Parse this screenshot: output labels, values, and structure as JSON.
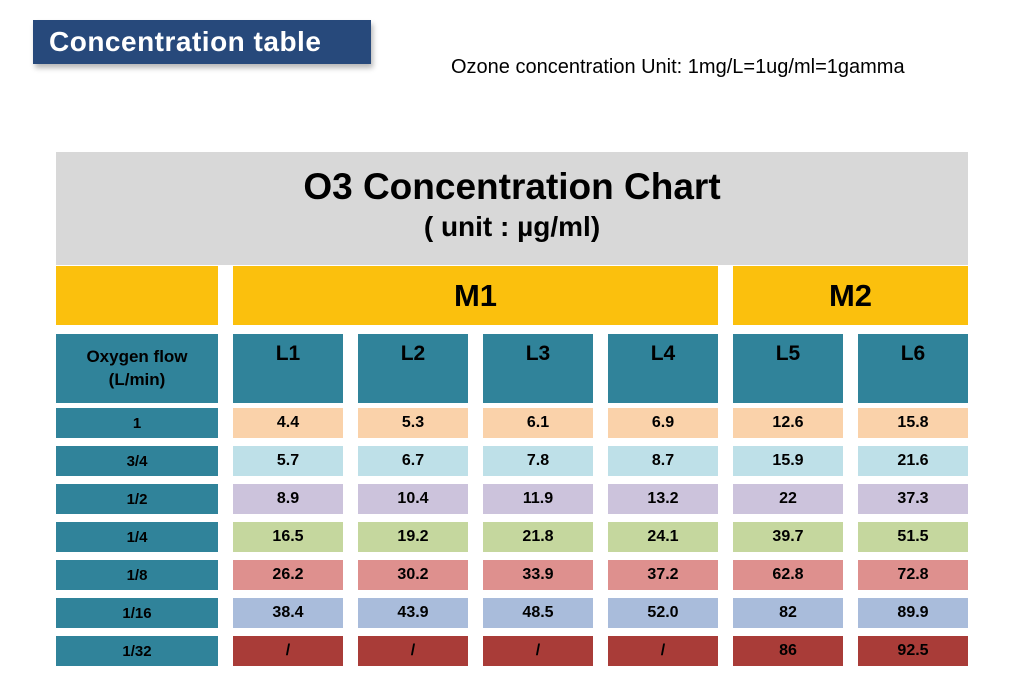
{
  "header": {
    "banner_title": "Concentration table",
    "unit_note": "Ozone concentration Unit: 1mg/L=1ug/ml=1gamma"
  },
  "table": {
    "title": "O3 Concentration Chart",
    "subtitle": "( unit : µg/ml)",
    "group_headers": [
      {
        "label": "",
        "span": 1
      },
      {
        "label": "M1",
        "span": 4
      },
      {
        "label": "M2",
        "span": 2
      }
    ],
    "corner_header": {
      "line1": "Oxygen flow",
      "line2": "(L/min)"
    },
    "column_headers": [
      "L1",
      "L2",
      "L3",
      "L4",
      "L5",
      "L6"
    ],
    "rows": [
      {
        "label": "1",
        "values": [
          "4.4",
          "5.3",
          "6.1",
          "6.9",
          "12.6",
          "15.8"
        ],
        "row_color": "#FAD2AA"
      },
      {
        "label": "3/4",
        "values": [
          "5.7",
          "6.7",
          "7.8",
          "8.7",
          "15.9",
          "21.6"
        ],
        "row_color": "#BEE0E8"
      },
      {
        "label": "1/2",
        "values": [
          "8.9",
          "10.4",
          "11.9",
          "13.2",
          "22",
          "37.3"
        ],
        "row_color": "#CCC3DC"
      },
      {
        "label": "1/4",
        "values": [
          "16.5",
          "19.2",
          "21.8",
          "24.1",
          "39.7",
          "51.5"
        ],
        "row_color": "#C5D79E"
      },
      {
        "label": "1/8",
        "values": [
          "26.2",
          "30.2",
          "33.9",
          "37.2",
          "62.8",
          "72.8"
        ],
        "row_color": "#DE908E"
      },
      {
        "label": "1/16",
        "values": [
          "38.4",
          "43.9",
          "48.5",
          "52.0",
          "82",
          "89.9"
        ],
        "row_color": "#A9BCDB"
      },
      {
        "label": "1/32",
        "values": [
          "/",
          "/",
          "/",
          "/",
          "86",
          "92.5"
        ],
        "row_color": "#A93C38"
      }
    ],
    "colors": {
      "banner_bg": "#27497B",
      "banner_text": "#FFFFFF",
      "title_block_bg": "#D8D8D8",
      "group_header_bg": "#FBC00D",
      "column_header_bg": "#30839A",
      "text": "#000000"
    }
  }
}
